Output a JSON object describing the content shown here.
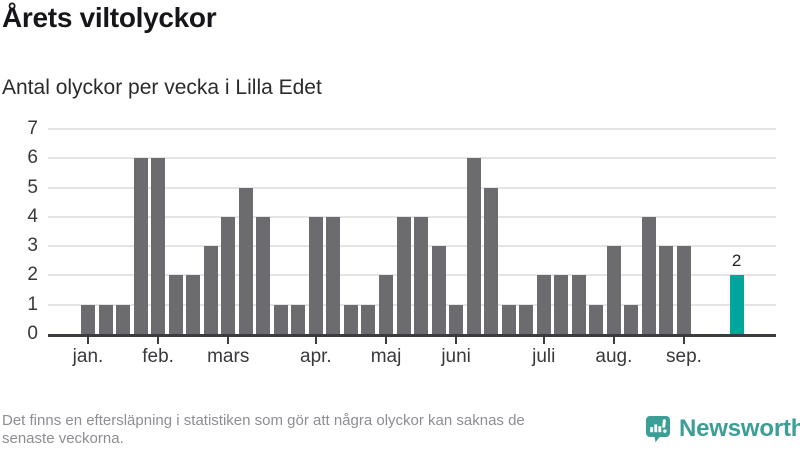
{
  "header": {
    "title": "Årets viltolyckor",
    "subtitle": "Antal olyckor per vecka i Lilla Edet"
  },
  "footer": {
    "note_line1": "Det finns en eftersläpning i statistiken som gör att några olyckor kan saknas de",
    "note_line2": "senaste veckorna.",
    "brand": "Newsworthy"
  },
  "colors": {
    "bar": "#6b6b70",
    "highlight": "#00a69b",
    "grid": "#e4e4e4",
    "axis": "#3c3c40",
    "tick_label": "#39393d",
    "title": "#16161a",
    "footer_text": "#8d8d93",
    "brand": "#3b9e97"
  },
  "chart_data": {
    "type": "bar",
    "title": "Årets viltolyckor",
    "subtitle": "Antal olyckor per vecka i Lilla Edet",
    "x_unit": "vecka",
    "values": [
      1,
      1,
      1,
      6,
      6,
      2,
      2,
      3,
      4,
      5,
      4,
      1,
      1,
      4,
      4,
      1,
      1,
      2,
      4,
      4,
      3,
      1,
      6,
      5,
      1,
      1,
      2,
      2,
      2,
      1,
      3,
      1,
      4,
      3,
      3,
      0,
      0,
      2
    ],
    "highlight_index": 37,
    "highlight_value_label": "2",
    "y_ticks": [
      0,
      1,
      2,
      3,
      4,
      5,
      6,
      7
    ],
    "ylim": [
      0,
      7
    ],
    "grid": true,
    "legend": "none",
    "month_ticks": [
      {
        "label": "jan.",
        "index": 0
      },
      {
        "label": "feb.",
        "index": 4
      },
      {
        "label": "mars",
        "index": 8
      },
      {
        "label": "apr.",
        "index": 13
      },
      {
        "label": "maj",
        "index": 17
      },
      {
        "label": "juni",
        "index": 21
      },
      {
        "label": "juli",
        "index": 26
      },
      {
        "label": "aug.",
        "index": 30
      },
      {
        "label": "sep.",
        "index": 34
      }
    ]
  }
}
